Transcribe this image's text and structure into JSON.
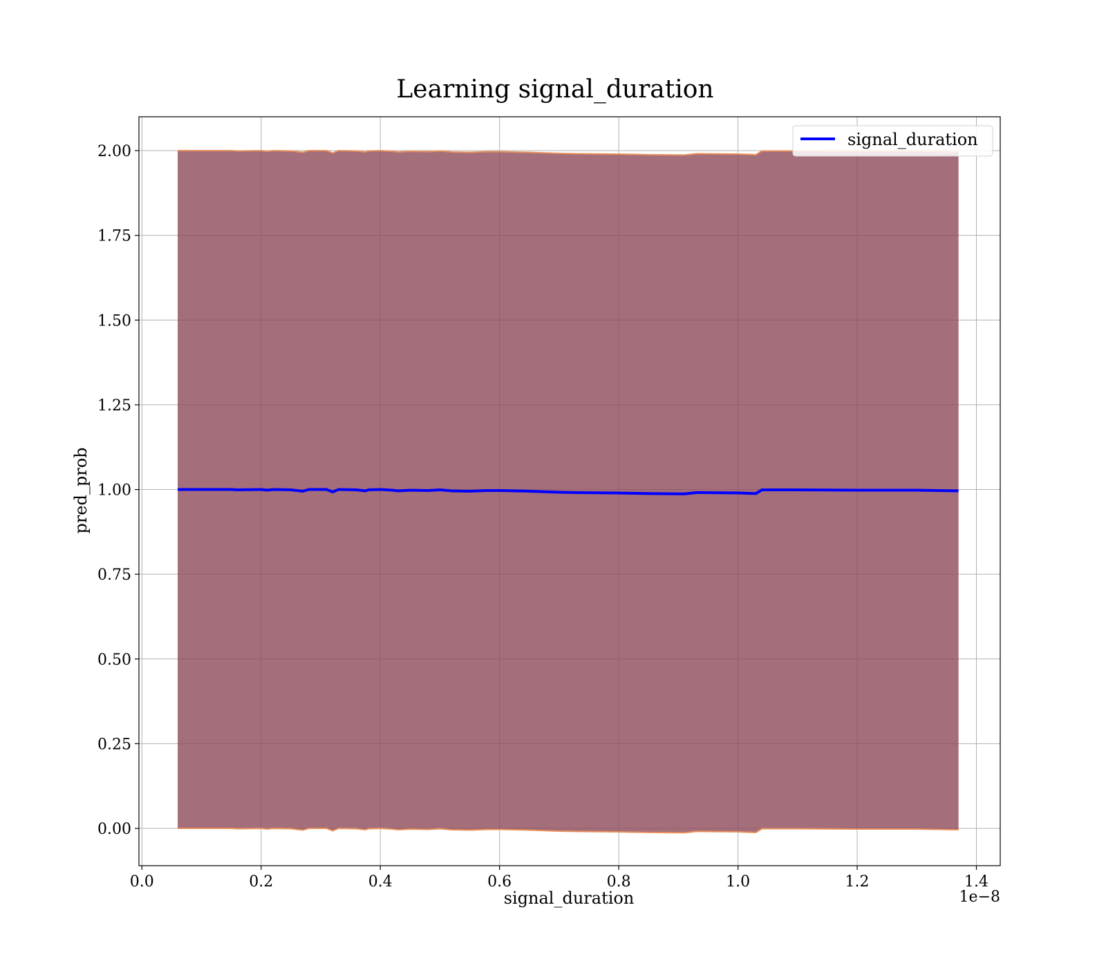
{
  "chart_data": {
    "type": "line",
    "title": "Learning signal_duration",
    "xlabel": "signal_duration",
    "ylabel": "pred_prob",
    "x_offset_label": "1e−8",
    "xlim": [
      -0.005,
      1.44
    ],
    "ylim": [
      -0.11,
      2.1
    ],
    "x_ticks": [
      0.0,
      0.2,
      0.4,
      0.6,
      0.8,
      1.0,
      1.2,
      1.4
    ],
    "x_tick_labels": [
      "0.0",
      "0.2",
      "0.4",
      "0.6",
      "0.8",
      "1.0",
      "1.2",
      "1.4"
    ],
    "y_ticks": [
      0.0,
      0.25,
      0.5,
      0.75,
      1.0,
      1.25,
      1.5,
      1.75,
      2.0
    ],
    "y_tick_labels": [
      "0.00",
      "0.25",
      "0.50",
      "0.75",
      "1.00",
      "1.25",
      "1.50",
      "1.75",
      "2.00"
    ],
    "grid": true,
    "legend_position": "top-right",
    "series": [
      {
        "name": "signal_duration",
        "color": "#0000ff",
        "x": [
          0.06,
          0.1,
          0.15,
          0.16,
          0.2,
          0.21,
          0.22,
          0.25,
          0.27,
          0.28,
          0.31,
          0.32,
          0.33,
          0.36,
          0.375,
          0.38,
          0.4,
          0.42,
          0.43,
          0.45,
          0.48,
          0.5,
          0.52,
          0.55,
          0.58,
          0.6,
          0.65,
          0.7,
          0.73,
          0.79,
          0.85,
          0.91,
          0.93,
          1.0,
          1.03,
          1.04,
          1.1,
          1.2,
          1.3,
          1.37
        ],
        "y": [
          1.0,
          1.0,
          1.0,
          0.999,
          1.0,
          0.998,
          1.0,
          0.999,
          0.995,
          1.0,
          1.0,
          0.993,
          1.0,
          0.999,
          0.996,
          0.999,
          1.0,
          0.998,
          0.996,
          0.998,
          0.997,
          0.999,
          0.996,
          0.995,
          0.997,
          0.997,
          0.995,
          0.992,
          0.991,
          0.99,
          0.988,
          0.987,
          0.991,
          0.99,
          0.988,
          0.999,
          0.999,
          0.998,
          0.998,
          0.996
        ]
      }
    ],
    "band": {
      "color": "#8b4556",
      "edge_color": "#e8915b",
      "lower": [
        0.0,
        0.0,
        0.0,
        -0.001,
        0.0,
        -0.002,
        0.0,
        -0.001,
        -0.005,
        0.0,
        0.0,
        -0.007,
        0.0,
        -0.001,
        -0.004,
        -0.001,
        0.0,
        -0.002,
        -0.004,
        -0.002,
        -0.003,
        -0.001,
        -0.004,
        -0.005,
        -0.003,
        -0.003,
        -0.005,
        -0.008,
        -0.009,
        -0.01,
        -0.012,
        -0.013,
        -0.009,
        -0.01,
        -0.012,
        -0.001,
        -0.001,
        -0.002,
        -0.002,
        -0.004
      ],
      "upper": [
        2.0,
        2.0,
        2.0,
        1.999,
        2.0,
        1.998,
        2.0,
        1.999,
        1.995,
        2.0,
        2.0,
        1.993,
        2.0,
        1.999,
        1.996,
        1.999,
        2.0,
        1.998,
        1.996,
        1.998,
        1.997,
        1.999,
        1.996,
        1.995,
        1.997,
        1.997,
        1.995,
        1.992,
        1.991,
        1.99,
        1.988,
        1.987,
        1.991,
        1.99,
        1.988,
        1.999,
        1.999,
        1.998,
        1.998,
        1.996
      ]
    }
  }
}
